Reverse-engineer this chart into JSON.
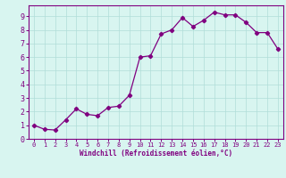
{
  "x": [
    0,
    1,
    2,
    3,
    4,
    5,
    6,
    7,
    8,
    9,
    10,
    11,
    12,
    13,
    14,
    15,
    16,
    17,
    18,
    19,
    20,
    21,
    22,
    23
  ],
  "y": [
    1.0,
    0.7,
    0.65,
    1.4,
    2.2,
    1.8,
    1.7,
    2.3,
    2.4,
    3.2,
    6.0,
    6.1,
    7.7,
    8.0,
    8.9,
    8.25,
    8.7,
    9.3,
    9.1,
    9.1,
    8.55,
    7.8,
    7.8,
    6.6
  ],
  "line_color": "#800080",
  "marker": "D",
  "marker_size": 2.2,
  "bg_color": "#d8f5f0",
  "grid_color": "#b0ddd8",
  "xlabel": "Windchill (Refroidissement éolien,°C)",
  "xlabel_color": "#800080",
  "tick_color": "#800080",
  "spine_color": "#800080",
  "xlim": [
    -0.5,
    23.5
  ],
  "ylim": [
    0,
    9.8
  ],
  "yticks": [
    0,
    1,
    2,
    3,
    4,
    5,
    6,
    7,
    8,
    9
  ],
  "xticks": [
    0,
    1,
    2,
    3,
    4,
    5,
    6,
    7,
    8,
    9,
    10,
    11,
    12,
    13,
    14,
    15,
    16,
    17,
    18,
    19,
    20,
    21,
    22,
    23
  ],
  "figsize": [
    3.2,
    2.0
  ],
  "dpi": 100
}
